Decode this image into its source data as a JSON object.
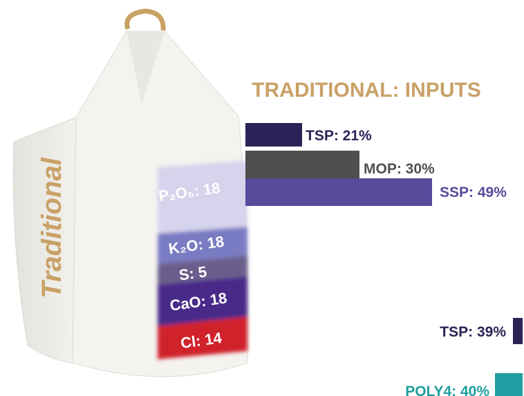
{
  "bag": {
    "name": "Traditional",
    "layers": [
      {
        "label": "P₂O₅: 18",
        "color": "#d6d3ec"
      },
      {
        "label": "K₂O: 18",
        "color": "#7a7bc3"
      },
      {
        "label": "S: 5",
        "color": "#6b5f8c"
      },
      {
        "label": "CaO: 18",
        "color": "#4a2c89"
      },
      {
        "label": "Cl: 14",
        "color": "#d0202b"
      }
    ]
  },
  "title": "TRADITIONAL: INPUTS",
  "bars": [
    {
      "label": "TSP: 21%",
      "color": "#2b2357"
    },
    {
      "label": "MOP: 30%",
      "color": "#4f4f4f"
    },
    {
      "label": "SSP: 49%",
      "color": "#594a9c"
    }
  ],
  "lower_bars": [
    {
      "label": "TSP: 39%",
      "color": "#2b2357"
    },
    {
      "label": "POLY4: 40%",
      "color": "#1e9ea0"
    }
  ]
}
